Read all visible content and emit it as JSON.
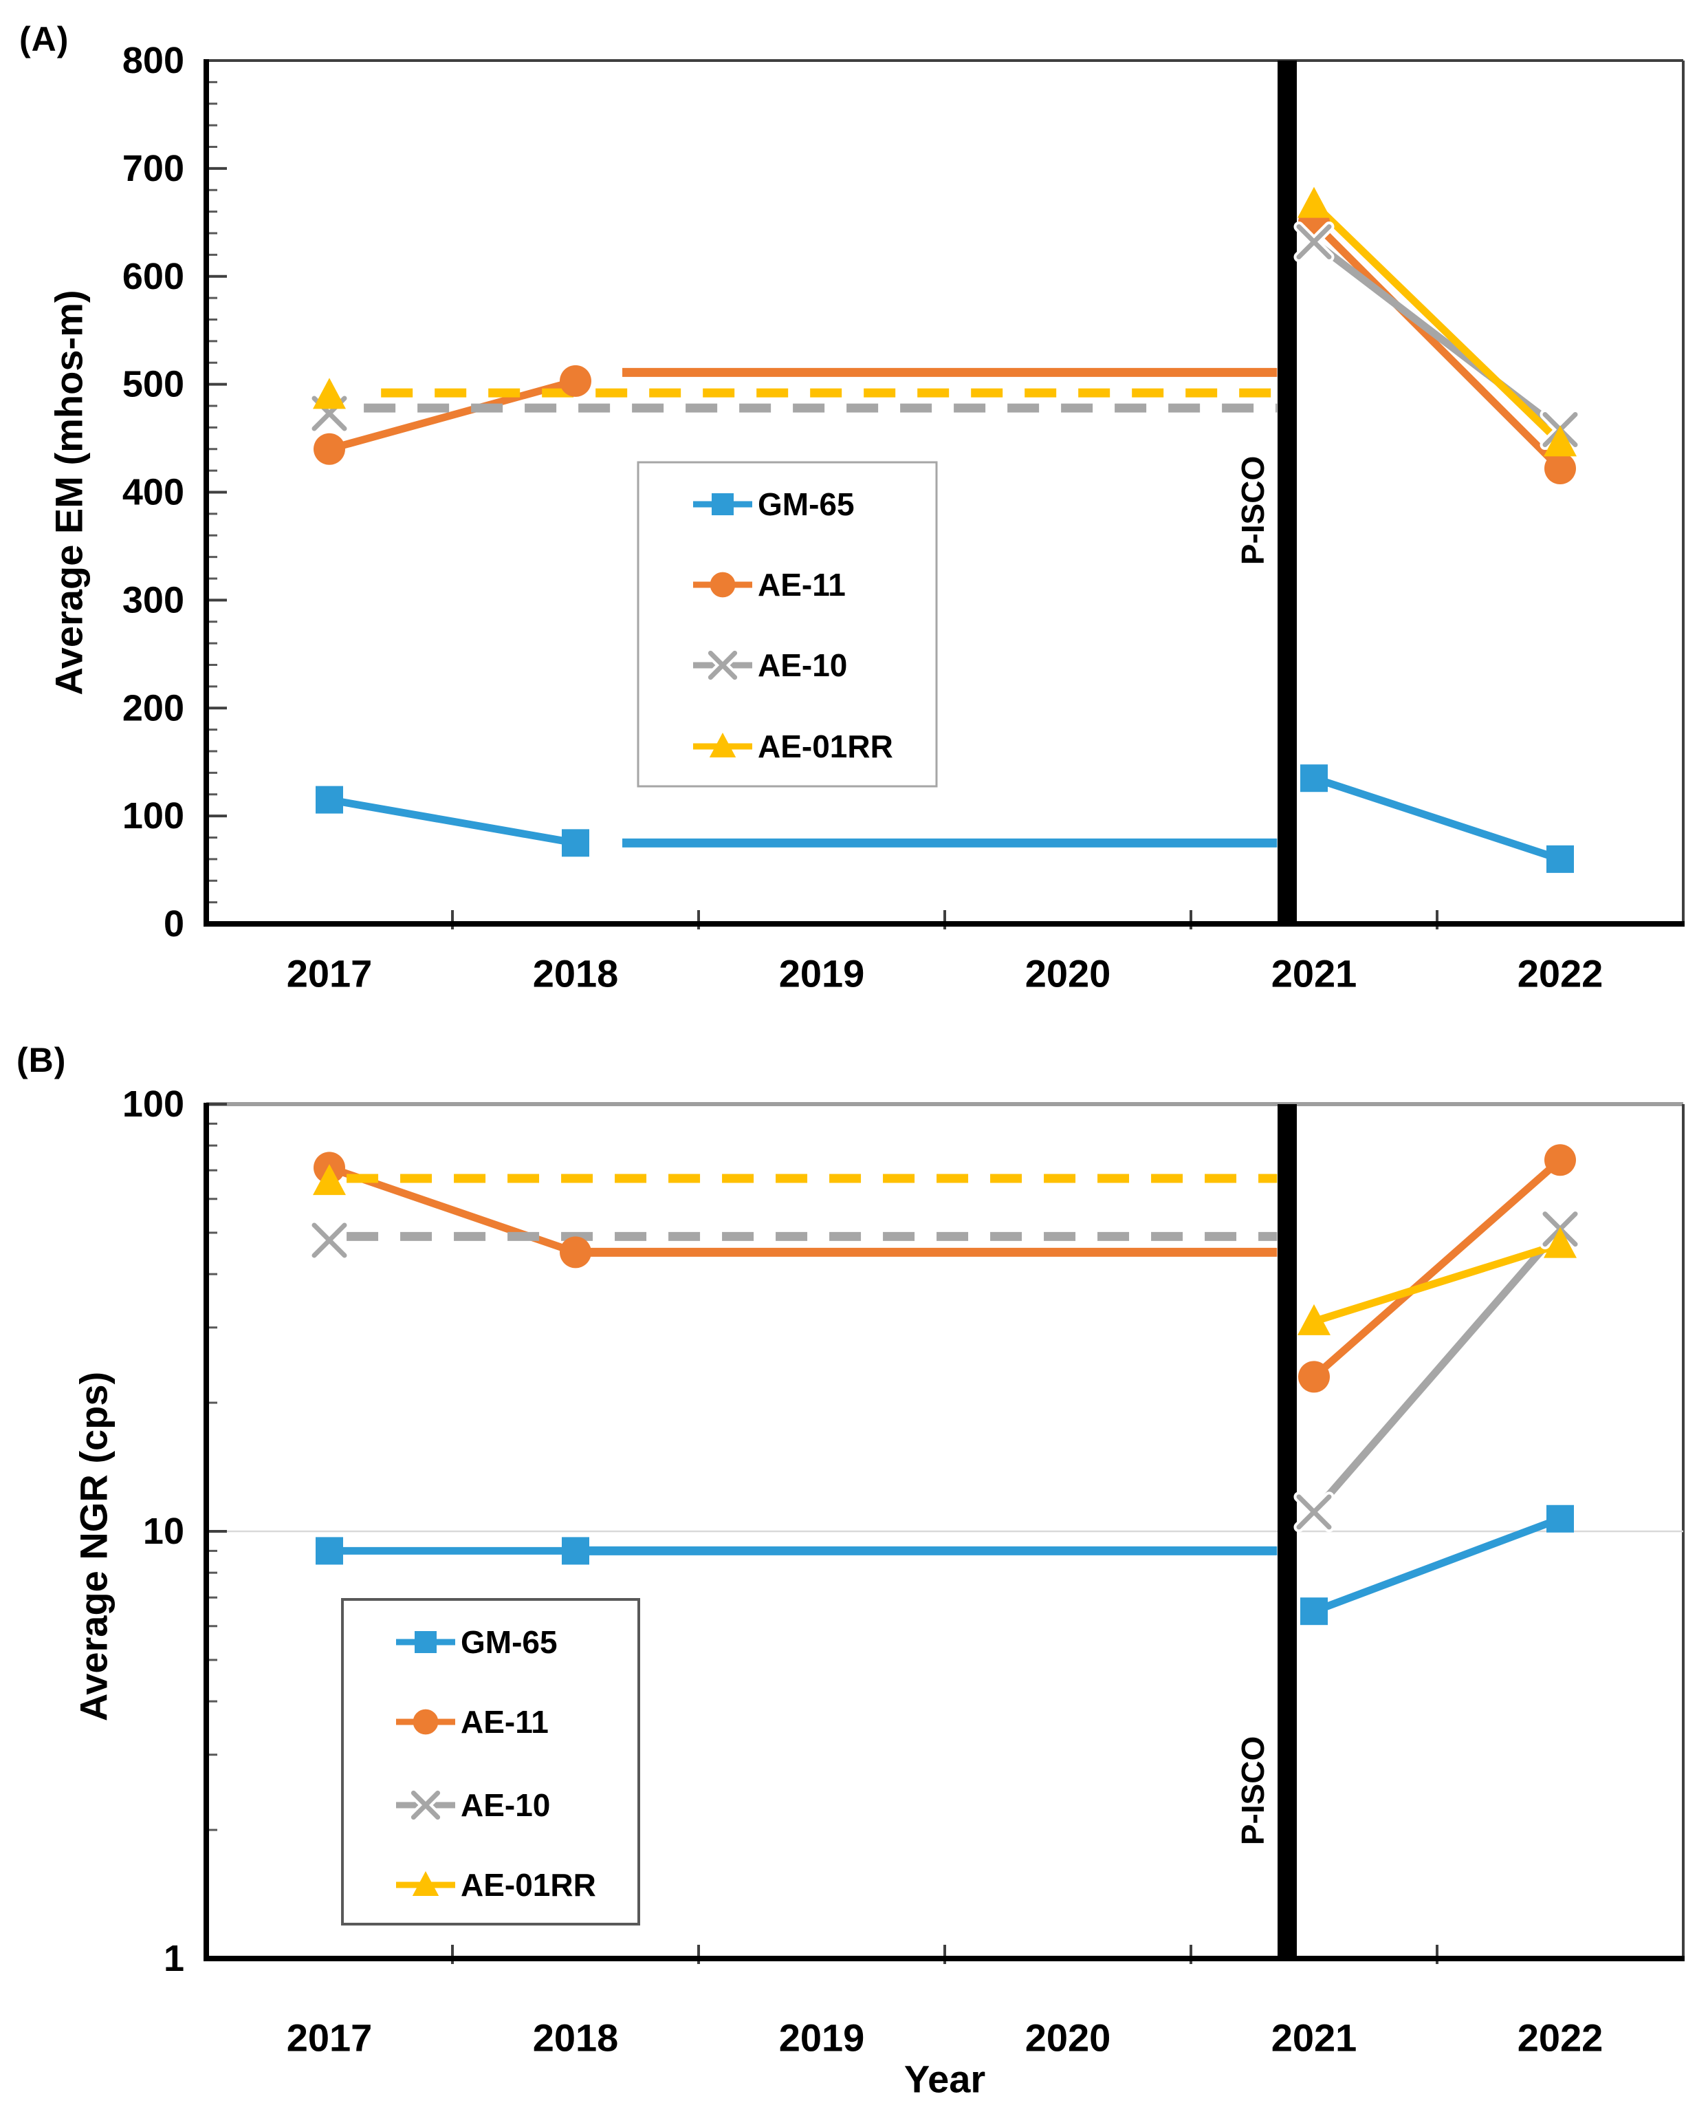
{
  "page": {
    "background": "#ffffff"
  },
  "panels": {
    "a_label": "(A)",
    "b_label": "(B)"
  },
  "colors": {
    "blue": "#2E9BD6",
    "orange": "#ED7D31",
    "gray": "#A6A6A6",
    "yellow": "#FFC000",
    "axis": "#000000",
    "frame": "#404040",
    "frame_light": "#9E9E9E",
    "tick": "#595959",
    "gridline": "#D9D9D9",
    "annotation_bar": "#000000",
    "legend_border_a": "#A6A6A6",
    "legend_border_b": "#595959",
    "text": "#000000"
  },
  "chart_data": [
    {
      "id": "A",
      "type": "line",
      "panel_label": "(A)",
      "title": "",
      "xlabel": "",
      "ylabel": "Average EM (mhos-m)",
      "categories": [
        "2017",
        "2018",
        "2019",
        "2020",
        "2021",
        "2022"
      ],
      "yaxis": {
        "scale": "linear",
        "min": 0,
        "max": 800,
        "major_step": 100,
        "minor_step": 20,
        "tick_labels": [
          "0",
          "100",
          "200",
          "300",
          "400",
          "500",
          "600",
          "700",
          "800"
        ],
        "gridlines": []
      },
      "annotation": {
        "label": "P-ISCO",
        "position": "before-2021"
      },
      "legend": {
        "items": [
          "GM-65",
          "AE-11",
          "AE-10",
          "AE-01RR"
        ]
      },
      "series": [
        {
          "name": "GM-65",
          "color_key": "blue",
          "marker": "square",
          "pre": [
            [
              2017,
              115
            ],
            [
              2018,
              75
            ]
          ],
          "plateau": {
            "y": 75,
            "from": 2018.19,
            "to": 2020.85,
            "dashed": false
          },
          "post": [
            [
              2021,
              135
            ],
            [
              2022,
              60
            ]
          ]
        },
        {
          "name": "AE-11",
          "color_key": "orange",
          "marker": "circle",
          "pre": [
            [
              2017,
              440
            ],
            [
              2018,
              503
            ]
          ],
          "plateau": {
            "y": 511,
            "from": 2018.19,
            "to": 2020.85,
            "dashed": false
          },
          "post": [
            [
              2021,
              650
            ],
            [
              2022,
              422
            ]
          ]
        },
        {
          "name": "AE-10",
          "color_key": "gray",
          "marker": "x",
          "pre": [
            [
              2017,
              473
            ]
          ],
          "plateau": {
            "y": 478,
            "from": 2017.14,
            "to": 2020.85,
            "dashed": true
          },
          "post": [
            [
              2021,
              632
            ],
            [
              2022,
              458
            ]
          ]
        },
        {
          "name": "AE-01RR",
          "color_key": "yellow",
          "marker": "triangle",
          "pre": [
            [
              2017,
              490
            ]
          ],
          "plateau": {
            "y": 492,
            "from": 2017.21,
            "to": 2020.85,
            "dashed": true
          },
          "post": [
            [
              2021,
              667
            ],
            [
              2022,
              446
            ]
          ]
        }
      ]
    },
    {
      "id": "B",
      "type": "line",
      "panel_label": "(B)",
      "title": "",
      "xlabel": "Year",
      "ylabel": "Average NGR (cps)",
      "categories": [
        "2017",
        "2018",
        "2019",
        "2020",
        "2021",
        "2022"
      ],
      "yaxis": {
        "scale": "log",
        "min": 1,
        "max": 100,
        "tick_labels": [
          "1",
          "10",
          "100"
        ],
        "gridlines": [
          10
        ]
      },
      "annotation": {
        "label": "P-ISCO",
        "position": "before-2021"
      },
      "legend": {
        "items": [
          "GM-65",
          "AE-11",
          "AE-10",
          "AE-01RR"
        ]
      },
      "series": [
        {
          "name": "GM-65",
          "color_key": "blue",
          "marker": "square",
          "pre": [
            [
              2017,
              9
            ],
            [
              2018,
              9
            ]
          ],
          "plateau": {
            "y": 9,
            "from": 2018,
            "to": 2020.85,
            "dashed": false
          },
          "post": [
            [
              2021,
              6.5
            ],
            [
              2022,
              10.7
            ]
          ]
        },
        {
          "name": "AE-11",
          "color_key": "orange",
          "marker": "circle",
          "pre": [
            [
              2017,
              71
            ],
            [
              2018,
              45
            ]
          ],
          "plateau": {
            "y": 45,
            "from": 2018,
            "to": 2020.85,
            "dashed": false
          },
          "post": [
            [
              2021,
              23
            ],
            [
              2022,
              74
            ]
          ]
        },
        {
          "name": "AE-10",
          "color_key": "gray",
          "marker": "x",
          "pre": [
            [
              2017,
              48
            ]
          ],
          "plateau": {
            "y": 49,
            "from": 2017.07,
            "to": 2020.85,
            "dashed": true
          },
          "post": [
            [
              2021,
              11.1
            ],
            [
              2022,
              51
            ]
          ]
        },
        {
          "name": "AE-01RR",
          "color_key": "yellow",
          "marker": "triangle",
          "pre": [
            [
              2017,
              66
            ]
          ],
          "plateau": {
            "y": 67,
            "from": 2017.07,
            "to": 2020.85,
            "dashed": true
          },
          "post": [
            [
              2021,
              31
            ],
            [
              2022,
              47
            ]
          ]
        }
      ]
    }
  ]
}
